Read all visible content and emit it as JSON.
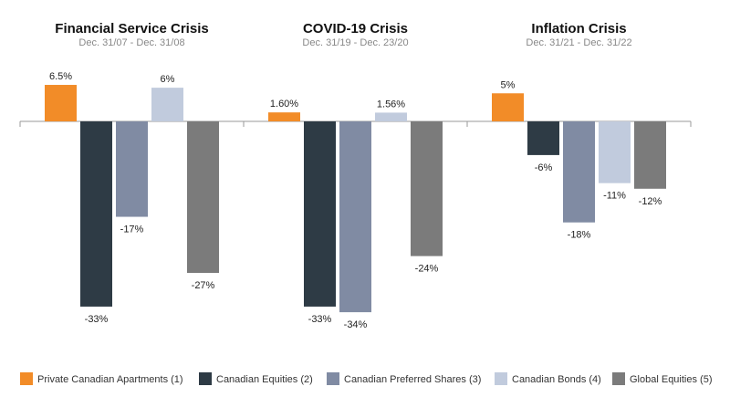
{
  "chart_data": {
    "type": "bar",
    "series": [
      {
        "name": "Private Canadian Apartments (1)",
        "color": "#F28C28"
      },
      {
        "name": "Canadian Equities (2)",
        "color": "#2E3B45"
      },
      {
        "name": "Canadian Preferred Shares (3)",
        "color": "#808BA3"
      },
      {
        "name": "Canadian Bonds (4)",
        "color": "#C1CBDD"
      },
      {
        "name": "Global Equities (5)",
        "color": "#7B7B7B"
      }
    ],
    "panels": [
      {
        "title": "Financial Service Crisis",
        "subtitle": "Dec. 31/07 - Dec. 31/08",
        "values": [
          6.5,
          -33,
          -17,
          6,
          -27
        ],
        "labels": [
          "6.5%",
          "-33%",
          "-17%",
          "6%",
          "-27%"
        ]
      },
      {
        "title": "COVID-19 Crisis",
        "subtitle": "Dec. 31/19 - Dec. 23/20",
        "values": [
          1.6,
          -33,
          -34,
          1.56,
          -24
        ],
        "labels": [
          "1.60%",
          "-33%",
          "-34%",
          "1.56%",
          "-24%"
        ]
      },
      {
        "title": "Inflation Crisis",
        "subtitle": "Dec. 31/21 - Dec. 31/22",
        "values": [
          5,
          -6,
          -18,
          -11,
          -12
        ],
        "labels": [
          "5%",
          "-6%",
          "-18%",
          "-11%",
          "-12%"
        ]
      }
    ],
    "legend_position": "bottom",
    "grid": false
  }
}
